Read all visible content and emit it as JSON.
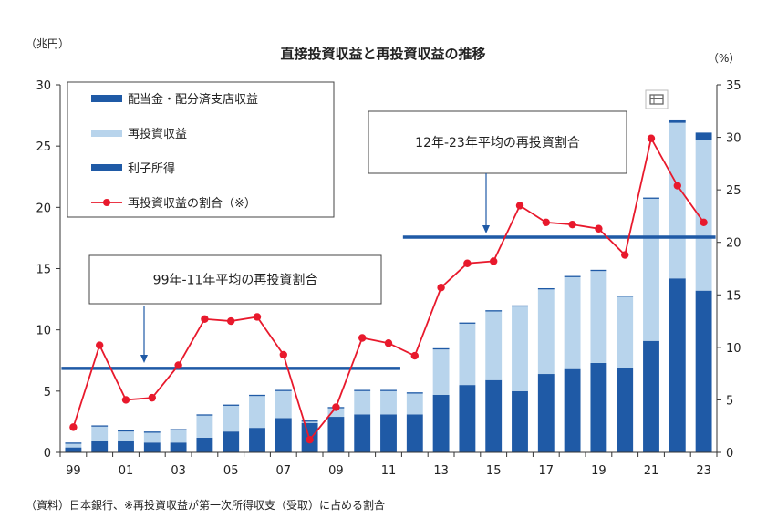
{
  "chart_data": {
    "type": "bar",
    "title": "直接投資収益と再投資収益の推移",
    "left_unit": "（兆円）",
    "right_unit": "（%）",
    "source": "（資料）日本銀行、※再投資収益が第一次所得収支（受取）に占める割合",
    "categories": [
      "99",
      "00",
      "01",
      "02",
      "03",
      "04",
      "05",
      "06",
      "07",
      "08",
      "09",
      "10",
      "11",
      "12",
      "13",
      "14",
      "15",
      "16",
      "17",
      "18",
      "19",
      "20",
      "21",
      "22",
      "23"
    ],
    "x_tick_labels": [
      "99",
      "01",
      "03",
      "05",
      "07",
      "09",
      "11",
      "13",
      "15",
      "17",
      "19",
      "21",
      "23"
    ],
    "y_left": {
      "min": 0,
      "max": 30,
      "ticks": [
        0,
        5,
        10,
        15,
        20,
        25,
        30
      ]
    },
    "y_right": {
      "min": 0,
      "max": 35,
      "ticks": [
        0,
        5,
        10,
        15,
        20,
        25,
        30,
        35
      ]
    },
    "grid": false,
    "legend_position": "top-left",
    "series": [
      {
        "name": "利子所得",
        "kind": "bar",
        "color": "#1f5aa6",
        "values": [
          0.4,
          0.9,
          0.9,
          0.8,
          0.8,
          1.2,
          1.7,
          2.0,
          2.8,
          2.4,
          2.9,
          3.1,
          3.1,
          3.1,
          4.7,
          5.5,
          5.9,
          5.0,
          6.4,
          6.8,
          7.3,
          6.9,
          9.1,
          14.2,
          13.2
        ]
      },
      {
        "name": "再投資収益",
        "kind": "bar",
        "color": "#b8d4ec",
        "values": [
          0.3,
          1.2,
          0.8,
          0.8,
          1.0,
          1.8,
          2.1,
          2.6,
          2.2,
          0.1,
          0.7,
          1.9,
          1.9,
          1.7,
          3.7,
          5.0,
          5.6,
          6.9,
          6.9,
          7.5,
          7.5,
          5.8,
          11.6,
          12.7,
          12.3
        ]
      },
      {
        "name": "配当金・配分済支店収益",
        "kind": "bar",
        "color": "#1f5aa6",
        "values": [
          0.1,
          0.1,
          0.1,
          0.1,
          0.1,
          0.1,
          0.1,
          0.1,
          0.1,
          0.1,
          0.1,
          0.1,
          0.1,
          0.1,
          0.1,
          0.1,
          0.1,
          0.1,
          0.1,
          0.1,
          0.1,
          0.1,
          0.1,
          0.2,
          0.6
        ]
      },
      {
        "name": "再投資収益の割合（※）",
        "kind": "line",
        "axis": "right",
        "color": "#e8192c",
        "values": [
          2.4,
          10.2,
          5.0,
          5.2,
          8.3,
          12.7,
          12.5,
          12.9,
          9.3,
          1.2,
          4.3,
          10.9,
          10.4,
          9.2,
          15.7,
          18.0,
          18.2,
          23.5,
          21.9,
          21.7,
          21.3,
          18.8,
          29.9,
          25.4,
          21.9
        ]
      }
    ],
    "averages": [
      {
        "label": "99年-11年平均の再投資割合",
        "from": "99",
        "to": "11",
        "value": 8.0
      },
      {
        "label": "12年-23年平均の再投資割合",
        "from": "12",
        "to": "23",
        "value": 20.5
      }
    ]
  }
}
